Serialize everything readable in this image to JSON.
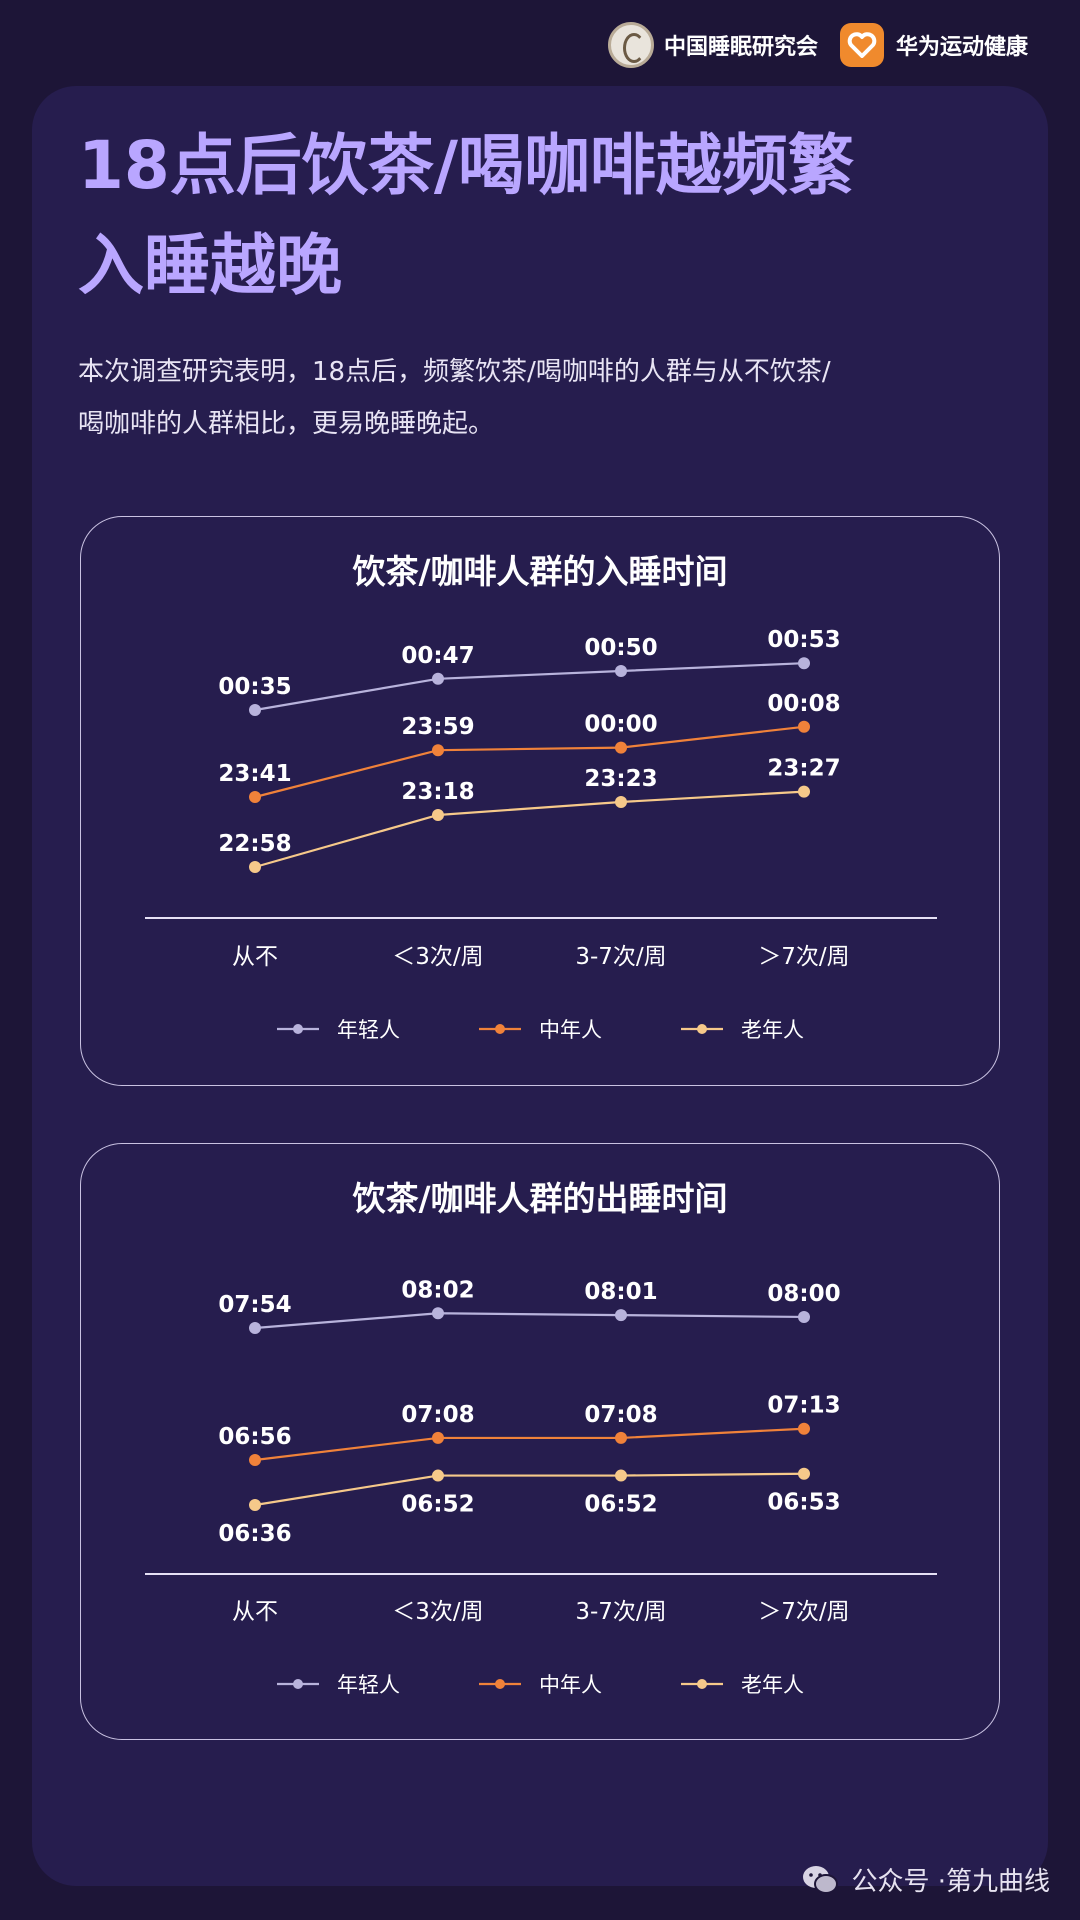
{
  "header": {
    "org1": "中国睡眠研究会",
    "org2": "华为运动健康"
  },
  "title_line1": "18点后饮茶/喝咖啡越频繁",
  "title_line2": "入睡越晚",
  "description_line1": "本次调查研究表明，18点后，频繁饮茶/喝咖啡的人群与从不饮茶/",
  "description_line2": "喝咖啡的人群相比，更易晚睡晚起。",
  "colors": {
    "young": "#b8b3dc",
    "middle": "#f0823a",
    "old": "#f6c98a"
  },
  "chart_data": [
    {
      "type": "line",
      "title": "饮茶/咖啡人群的入睡时间",
      "categories": [
        "从不",
        "＜3次/周",
        "3-7次/周",
        "＞7次/周"
      ],
      "series": [
        {
          "name": "年轻人",
          "values": [
            "00:35",
            "00:47",
            "00:50",
            "00:53"
          ]
        },
        {
          "name": "中年人",
          "values": [
            "23:41",
            "23:59",
            "00:00",
            "00:08"
          ]
        },
        {
          "name": "老年人",
          "values": [
            "22:58",
            "23:18",
            "23:23",
            "23:27"
          ]
        }
      ],
      "legend": "bottom"
    },
    {
      "type": "line",
      "title": "饮茶/咖啡人群的出睡时间",
      "categories": [
        "从不",
        "＜3次/周",
        "3-7次/周",
        "＞7次/周"
      ],
      "series": [
        {
          "name": "年轻人",
          "values": [
            "07:54",
            "08:02",
            "08:01",
            "08:00"
          ]
        },
        {
          "name": "中年人",
          "values": [
            "06:56",
            "07:08",
            "07:08",
            "07:13"
          ]
        },
        {
          "name": "老年人",
          "values": [
            "06:36",
            "06:52",
            "06:52",
            "06:53"
          ]
        }
      ],
      "legend": "bottom"
    }
  ],
  "footer": {
    "prefix": "公众号 · ",
    "name": "第九曲线"
  }
}
